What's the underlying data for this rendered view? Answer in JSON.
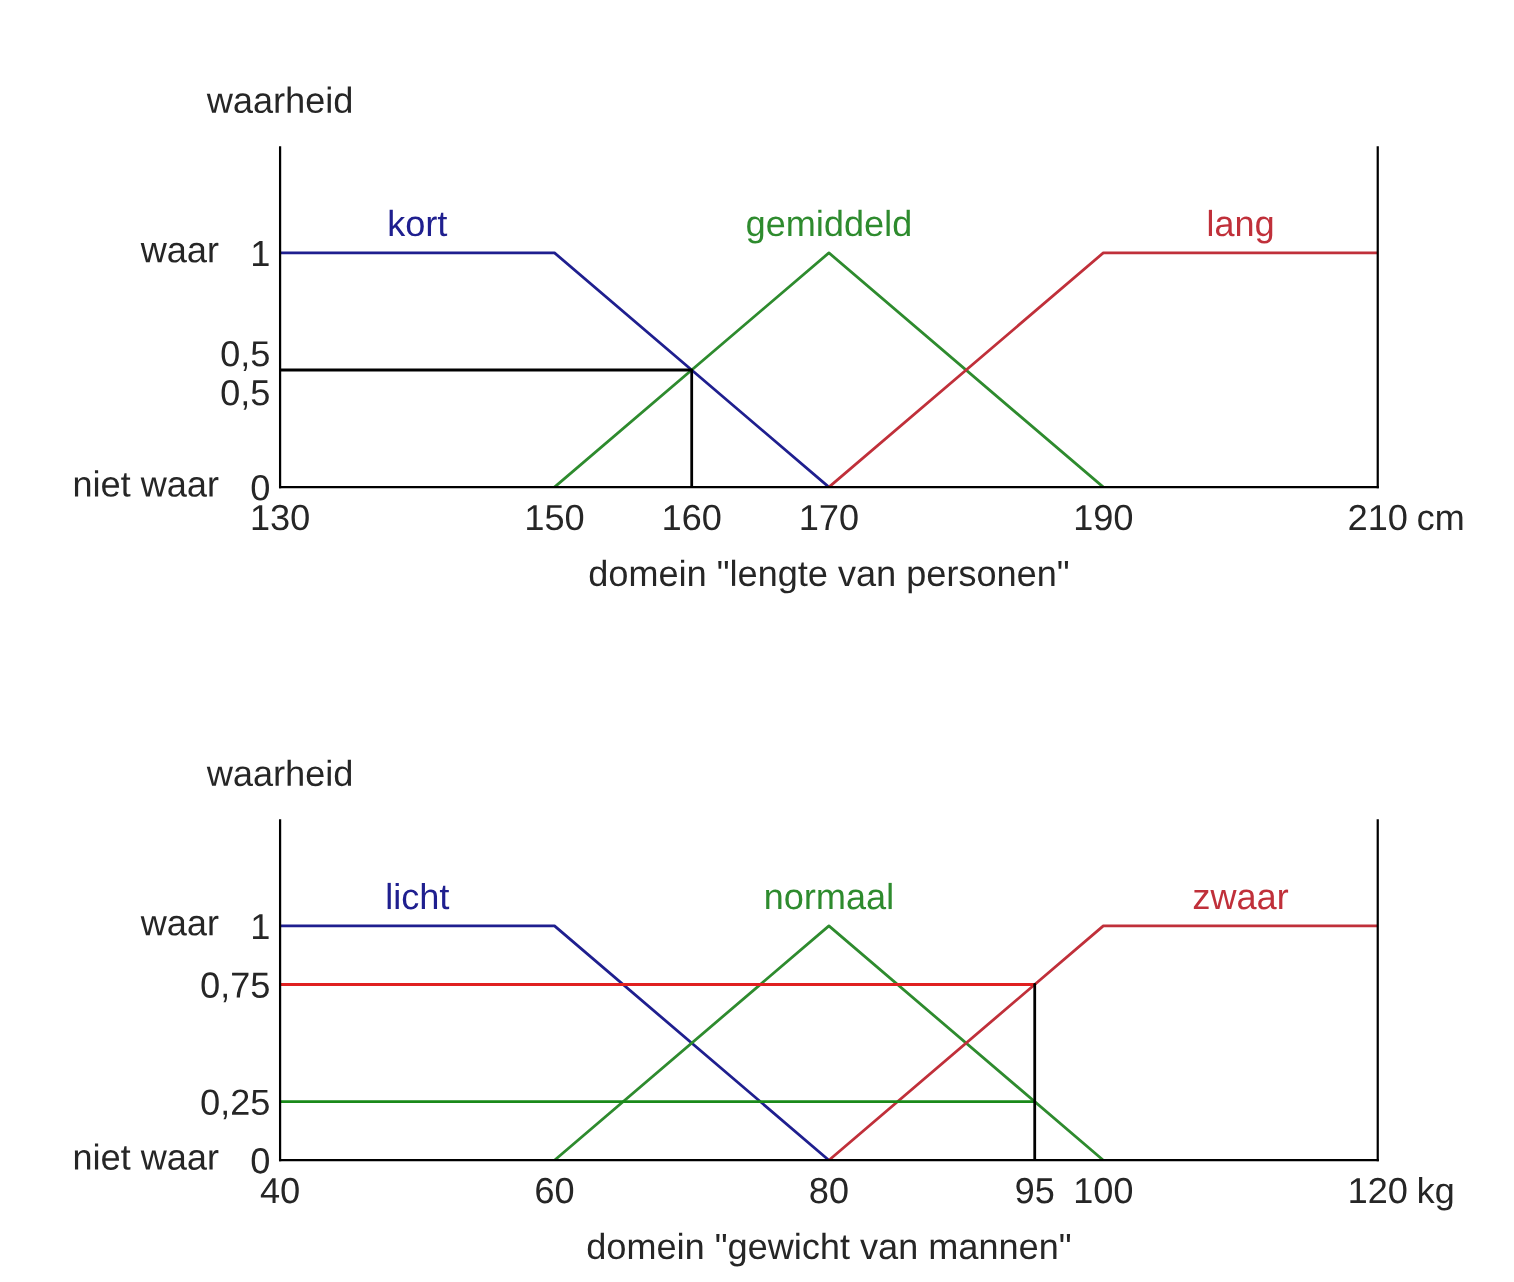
{
  "chart_data": [
    {
      "type": "line",
      "ylabel": "waarheid",
      "xlabel": "domein \"lengte van personen\"",
      "annotations": [
        "waar",
        "niet waar",
        "cm"
      ],
      "xlim": [
        130,
        210
      ],
      "xticks": [
        130,
        150,
        160,
        170,
        190,
        210
      ],
      "ylim": [
        0,
        1.45
      ],
      "yticks": [
        0,
        {
          "value": 0.5,
          "label": "0,5\n0,5"
        },
        1
      ],
      "grid": false,
      "legend": false,
      "series": [
        {
          "name": "kort",
          "color": "#1f1f8f",
          "x": [
            130,
            150,
            170
          ],
          "values": [
            1,
            1,
            0
          ]
        },
        {
          "name": "gemiddeld",
          "color": "#2e8b2e",
          "x": [
            150,
            170,
            190
          ],
          "values": [
            0,
            1,
            0
          ]
        },
        {
          "name": "lang",
          "color": "#c0303a",
          "x": [
            170,
            190,
            210
          ],
          "values": [
            0,
            1,
            1
          ]
        },
        {
          "color": "#000000",
          "x": [
            130,
            160,
            160
          ],
          "values": [
            0.5,
            0.5,
            0
          ]
        }
      ]
    },
    {
      "type": "line",
      "ylabel": "waarheid",
      "xlabel": "domein \"gewicht van mannen\"",
      "annotations": [
        "waar",
        "niet waar",
        "kg"
      ],
      "xlim": [
        40,
        120
      ],
      "xticks": [
        40,
        60,
        80,
        95,
        100,
        120
      ],
      "ylim": [
        0,
        1.45
      ],
      "yticks": [
        0,
        {
          "value": 0.25,
          "label": "0,25"
        },
        {
          "value": 0.75,
          "label": "0,75"
        },
        1
      ],
      "grid": false,
      "legend": false,
      "series": [
        {
          "name": "licht",
          "color": "#1f1f8f",
          "x": [
            40,
            60,
            80
          ],
          "values": [
            1,
            1,
            0
          ]
        },
        {
          "name": "normaal",
          "color": "#2e8b2e",
          "x": [
            60,
            80,
            100
          ],
          "values": [
            0,
            1,
            0
          ]
        },
        {
          "name": "zwaar",
          "color": "#c0303a",
          "x": [
            80,
            100,
            120
          ],
          "values": [
            0,
            1,
            1
          ]
        },
        {
          "color": "#e02020",
          "x": [
            40,
            95
          ],
          "values": [
            0.75,
            0.75
          ]
        },
        {
          "color": "#1a8a1a",
          "x": [
            40,
            95
          ],
          "values": [
            0.25,
            0.25
          ]
        },
        {
          "color": "#000000",
          "x": [
            95,
            95
          ],
          "values": [
            0,
            0.75
          ]
        }
      ]
    }
  ]
}
